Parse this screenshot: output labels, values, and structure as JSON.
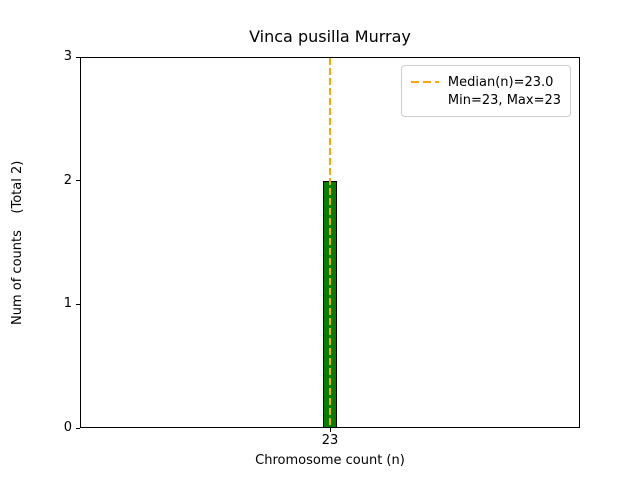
{
  "chart_data": {
    "type": "bar",
    "title": "Vinca pusilla Murray",
    "xlabel": "Chromosome count (n)",
    "ylabel": "Num of counts    (Total 2)",
    "categories": [
      "23"
    ],
    "values": [
      2
    ],
    "ylim": [
      0,
      3
    ],
    "yticks": [
      0,
      1,
      2,
      3
    ],
    "xtick_labels": [
      "23"
    ],
    "grid": false,
    "bar_color": "#008000",
    "bar_edge_color": "#000000",
    "median_line": {
      "x": "23",
      "value_label": "23.0",
      "color": "#ffa500",
      "style": "dashed"
    },
    "legend": {
      "position": "upper right",
      "line_color": "#ffa500",
      "entries": [
        "Median(n)=23.0",
        "Min=23, Max=23"
      ]
    }
  }
}
